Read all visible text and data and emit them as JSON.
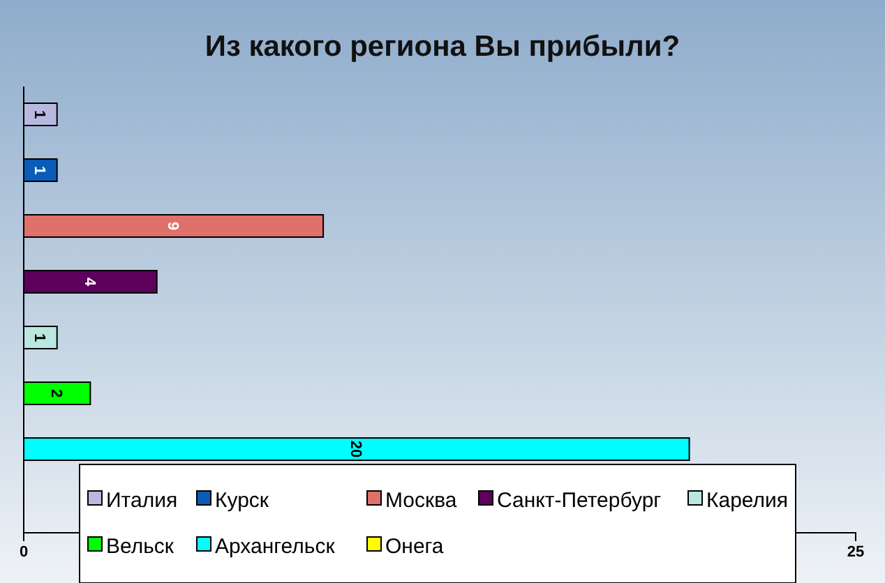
{
  "chart_data": {
    "type": "bar",
    "title": "Из какого региона Вы прибыли?",
    "orientation": "horizontal",
    "categories": [
      null
    ],
    "series": [
      {
        "name": "Италия",
        "color": "#b8b8e0",
        "values": [
          1
        ]
      },
      {
        "name": "Курск",
        "color": "#0a5cb8",
        "values": [
          1
        ]
      },
      {
        "name": "Москва",
        "color": "#e0706a",
        "values": [
          9
        ]
      },
      {
        "name": "Санкт-Петербург",
        "color": "#5c005c",
        "values": [
          4
        ]
      },
      {
        "name": "Карелия",
        "color": "#b8e8e0",
        "values": [
          1
        ]
      },
      {
        "name": "Вельск",
        "color": "#00ff00",
        "values": [
          2
        ]
      },
      {
        "name": "Архангельск",
        "color": "#00ffff",
        "values": [
          20
        ]
      },
      {
        "name": "Онега",
        "color": "#ffff00",
        "values": [
          null
        ]
      }
    ],
    "xlim": [
      0,
      25
    ],
    "xticks": [
      0,
      25
    ],
    "tick_labels": "x",
    "data_labels": true,
    "legend": "bottom",
    "grid": false
  }
}
